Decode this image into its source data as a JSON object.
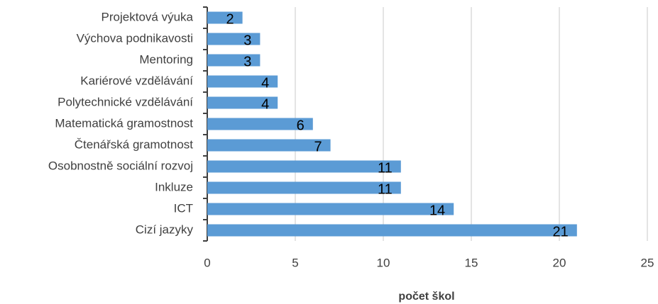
{
  "chart_data": {
    "type": "bar",
    "orientation": "horizontal",
    "categories": [
      "Projektová výuka",
      "Výchova podnikavosti",
      "Mentoring",
      "Kariérové vzdělávání",
      "Polytechnické vzdělávání",
      "Matematická gramostnost",
      "Čtenářská gramotnost",
      "Osobnostně sociální rozvoj",
      "Inkluze",
      "ICT",
      "Cizí jazyky"
    ],
    "values": [
      2,
      3,
      3,
      4,
      4,
      6,
      7,
      11,
      11,
      14,
      21
    ],
    "color": "#5b9bd5",
    "xlabel": "počet škol",
    "xlim": [
      0,
      25
    ],
    "xticks": [
      0,
      5,
      10,
      15,
      20,
      25
    ],
    "grid": true
  }
}
